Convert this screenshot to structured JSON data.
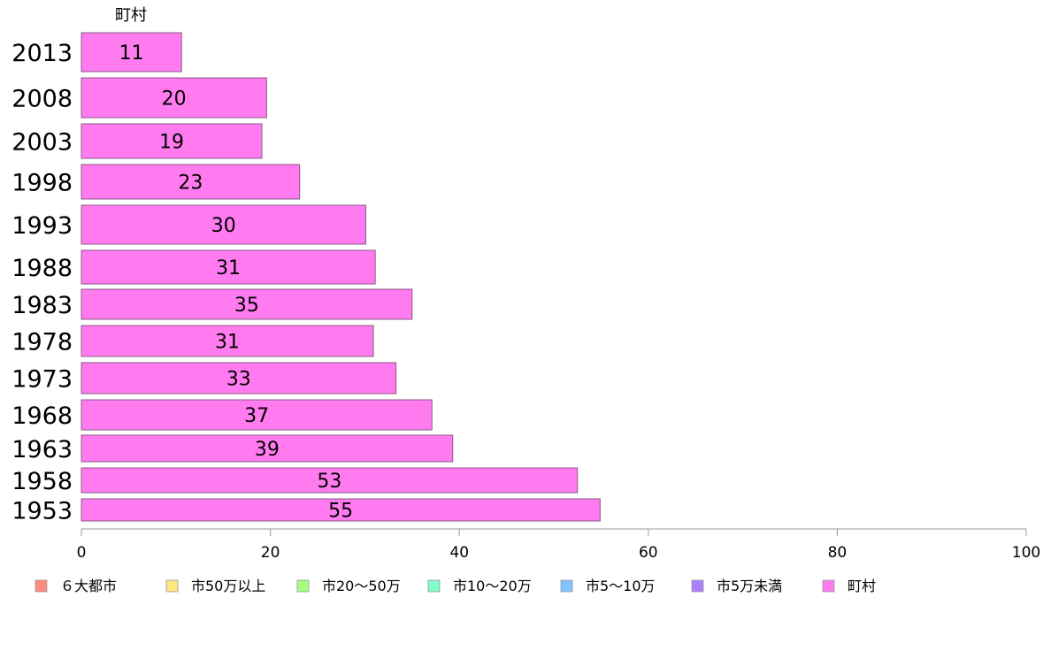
{
  "chart_data": {
    "type": "bar",
    "orientation": "horizontal",
    "series_header": "町村",
    "categories": [
      "2013",
      "2008",
      "2003",
      "1998",
      "1993",
      "1988",
      "1983",
      "1978",
      "1973",
      "1968",
      "1963",
      "1958",
      "1953"
    ],
    "values": [
      10.6,
      19.6,
      19.1,
      23.1,
      30.1,
      31.1,
      35.0,
      30.9,
      33.3,
      37.1,
      39.3,
      52.5,
      54.9
    ],
    "labels": [
      "11",
      "20",
      "19",
      "23",
      "30",
      "31",
      "35",
      "31",
      "33",
      "37",
      "39",
      "53",
      "55"
    ],
    "xlim": [
      0,
      100
    ],
    "xticks": [
      "0",
      "20",
      "40",
      "60",
      "80",
      "100"
    ],
    "bar_color": "#ff7bef",
    "legend": {
      "position": "bottom",
      "items": [
        {
          "label": "６大都市",
          "color": "#ff8a80"
        },
        {
          "label": "市50万以上",
          "color": "#ffe680"
        },
        {
          "label": "市20〜50万",
          "color": "#a4ff80"
        },
        {
          "label": "市10〜20万",
          "color": "#80ffc8"
        },
        {
          "label": "市5〜10万",
          "color": "#80c4ff"
        },
        {
          "label": "市5万未満",
          "color": "#aa80ff"
        },
        {
          "label": "町村",
          "color": "#ff7bef"
        }
      ]
    }
  }
}
